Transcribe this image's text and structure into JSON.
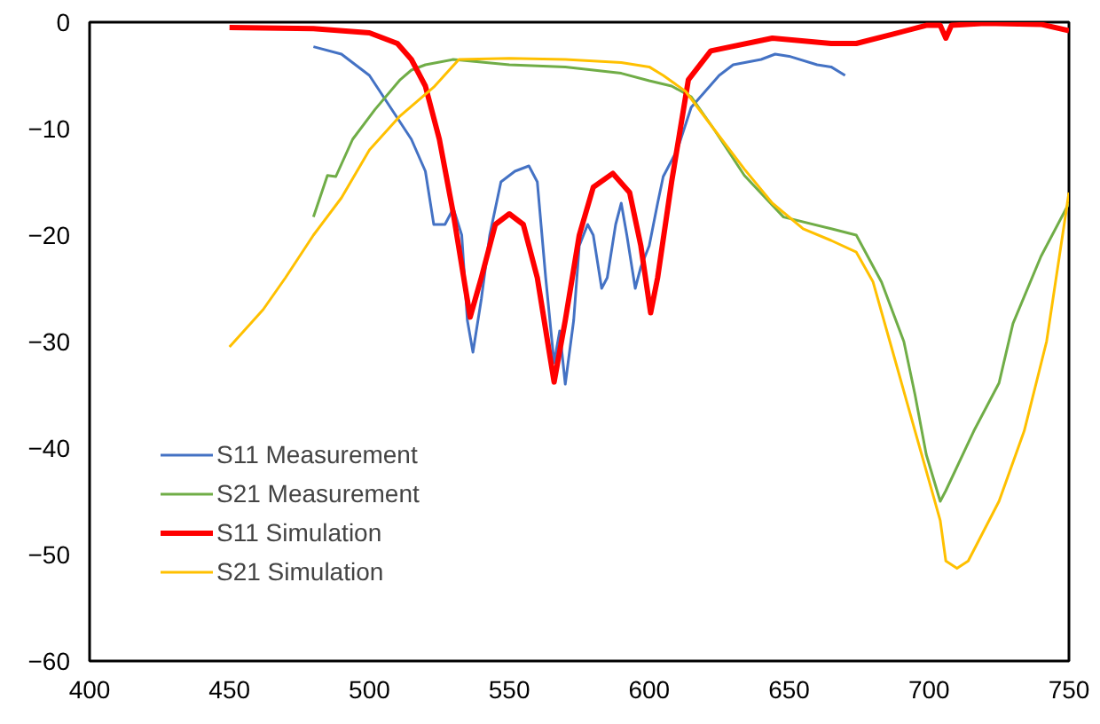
{
  "chart_data": {
    "type": "line",
    "xlim": [
      400,
      750
    ],
    "ylim": [
      -60,
      0
    ],
    "xticks": [
      400,
      450,
      500,
      550,
      600,
      650,
      700,
      750
    ],
    "yticks": [
      -60,
      -50,
      -40,
      -30,
      -20,
      -10,
      0
    ],
    "grid": false,
    "legend": "bottom left",
    "marker": "none",
    "line_style": "solid",
    "series": [
      {
        "name": "S11 Measurement",
        "color": "#4472c4",
        "x": [
          480,
          490,
          500,
          505,
          510,
          515,
          520,
          523,
          527,
          530,
          533,
          535,
          537,
          540,
          543,
          547,
          552,
          557,
          560,
          563,
          566,
          568,
          570,
          573,
          575,
          578,
          580,
          583,
          585,
          588,
          590,
          592,
          595,
          597,
          600,
          603,
          605,
          610,
          615,
          620,
          625,
          630,
          640,
          645,
          650,
          660,
          665,
          670
        ],
        "values": [
          -2.3,
          -3,
          -5,
          -7,
          -9,
          -11,
          -14,
          -19,
          -19,
          -17.5,
          -20,
          -28,
          -31,
          -26,
          -20,
          -15,
          -14,
          -13.5,
          -15,
          -24,
          -32,
          -29,
          -34,
          -28,
          -21,
          -19,
          -20,
          -25,
          -24,
          -19,
          -17,
          -20,
          -25,
          -23,
          -21,
          -17,
          -14.5,
          -12,
          -8,
          -6.5,
          -5,
          -4,
          -3.5,
          -3,
          -3.2,
          -4,
          -4.2,
          -5
        ]
      },
      {
        "name": "S21 Measurement",
        "color": "#70ad47",
        "x": [
          480,
          485,
          488,
          494,
          502,
          511,
          515,
          520,
          530,
          550,
          570,
          590,
          600,
          608,
          615,
          623,
          634,
          648,
          665,
          674,
          683,
          691,
          695,
          699,
          704,
          706,
          716,
          725,
          730,
          740,
          750
        ],
        "values": [
          -18.3,
          -14.4,
          -14.5,
          -11,
          -8.2,
          -5.4,
          -4.5,
          -4,
          -3.5,
          -4,
          -4.2,
          -4.8,
          -5.5,
          -6,
          -7,
          -10,
          -14.4,
          -18.3,
          -19.4,
          -20,
          -24.4,
          -30,
          -35,
          -40.6,
          -45,
          -44,
          -38.4,
          -33.9,
          -28.3,
          -22,
          -17
        ]
      },
      {
        "name": "S11 Simulation",
        "color": "#ff0000",
        "x": [
          450,
          480,
          500,
          510,
          515,
          520,
          525,
          530,
          536,
          540,
          545,
          550,
          555,
          560,
          566,
          570,
          575,
          580,
          587,
          593,
          597,
          600.5,
          603,
          608,
          614,
          622,
          644,
          665,
          674,
          686,
          699,
          704,
          706,
          708,
          720,
          740,
          750
        ],
        "values": [
          -0.5,
          -0.6,
          -1,
          -2,
          -3.5,
          -6,
          -11,
          -18,
          -27.7,
          -24,
          -19,
          -18,
          -19,
          -24,
          -33.8,
          -28,
          -20,
          -15.5,
          -14.2,
          -16,
          -21,
          -27.3,
          -24,
          -15,
          -5.4,
          -2.7,
          -1.5,
          -2,
          -2,
          -1.2,
          -0.3,
          -0.3,
          -1.5,
          -0.3,
          -0.1,
          -0.2,
          -0.8
        ]
      },
      {
        "name": "S21 Simulation",
        "color": "#ffc000",
        "x": [
          450,
          462,
          470,
          480,
          490,
          500,
          511,
          523,
          532,
          550,
          570,
          590,
          600,
          605,
          613,
          623,
          634,
          644,
          655,
          665,
          674,
          680,
          686,
          695,
          704,
          706,
          710,
          714,
          725,
          734,
          742,
          750
        ],
        "values": [
          -30.5,
          -27,
          -24,
          -20,
          -16.5,
          -12,
          -8.8,
          -6.1,
          -3.5,
          -3.4,
          -3.5,
          -3.8,
          -4.2,
          -5,
          -6.5,
          -10,
          -13.8,
          -17,
          -19.4,
          -20.5,
          -21.6,
          -24.4,
          -30,
          -38.4,
          -46.8,
          -50.6,
          -51.3,
          -50.6,
          -45,
          -38.4,
          -30,
          -16
        ]
      }
    ]
  }
}
